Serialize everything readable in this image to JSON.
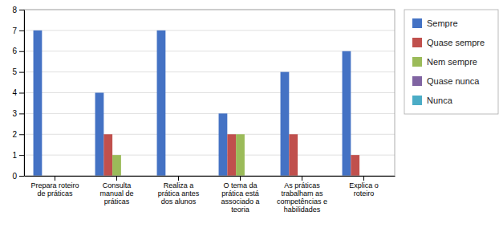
{
  "chart_data": {
    "type": "bar",
    "categories": [
      "Prepara roteiro\nde práticas",
      "Consulta\nmanual de\npráticas",
      "Realiza a\nprática antes\ndos alunos",
      "O tema da\nprática está\nassociado a\nteoria",
      "As práticas\ntrabalham as\ncompetências e\nhabilidades",
      "Explica o\nroteiro"
    ],
    "series": [
      {
        "name": "Sempre",
        "color": "#4472C4",
        "values": [
          7,
          4,
          7,
          3,
          5,
          6
        ]
      },
      {
        "name": "Quase sempre",
        "color": "#C0504D",
        "values": [
          0,
          2,
          0,
          2,
          2,
          1
        ]
      },
      {
        "name": "Nem sempre",
        "color": "#9BBB59",
        "values": [
          0,
          1,
          0,
          2,
          0,
          0
        ]
      },
      {
        "name": "Quase nunca",
        "color": "#8064A2",
        "values": [
          0,
          0,
          0,
          0,
          0,
          0
        ]
      },
      {
        "name": "Nunca",
        "color": "#4BACC6",
        "values": [
          0,
          0,
          0,
          0,
          0,
          0
        ]
      }
    ],
    "ylim": [
      0,
      8
    ],
    "yticks": [
      0,
      1,
      2,
      3,
      4,
      5,
      6,
      7,
      8
    ],
    "grid": true,
    "legend": "right"
  }
}
